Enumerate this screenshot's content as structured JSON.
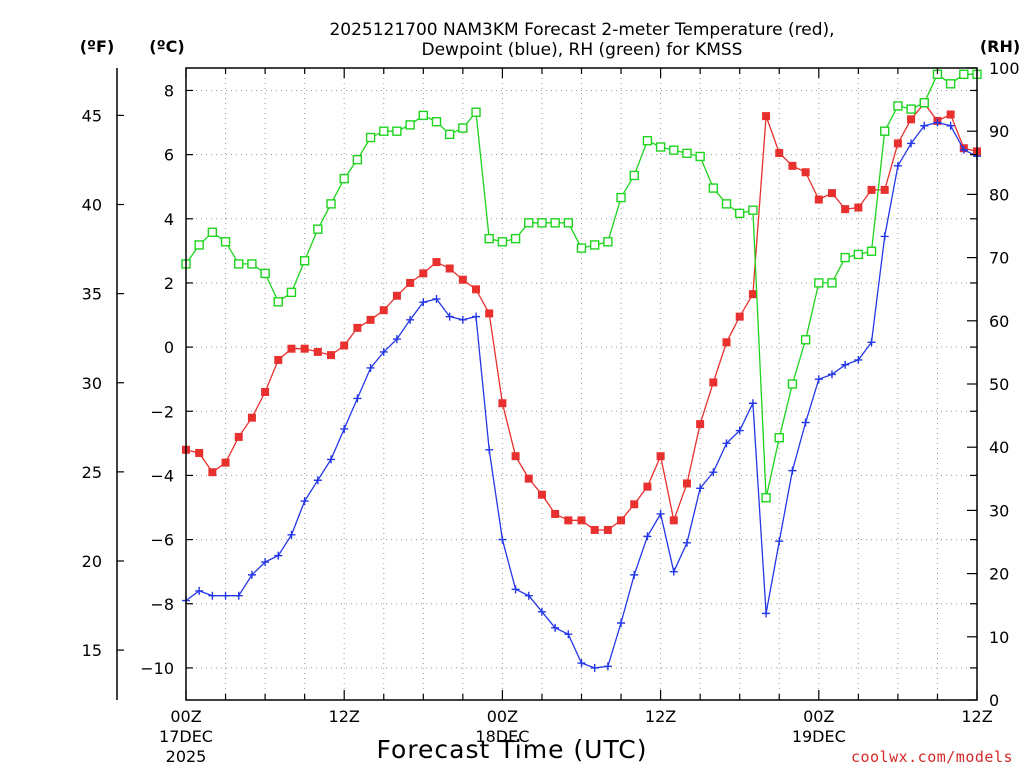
{
  "chart_data": {
    "type": "line",
    "title_lines": [
      "2025121700 NAM3KM Forecast 2-meter Temperature (red),",
      "Dewpoint (blue), RH (green) for KMSS"
    ],
    "xlabel": "Forecast Time (UTC)",
    "credit": "coolwx.com/models",
    "unit_labels": {
      "fahrenheit": "(ºF)",
      "celsius": "(ºC)",
      "rh": "(RH)"
    },
    "x_range_hours": [
      0,
      60
    ],
    "x_ticks": [
      {
        "hour": 0,
        "label": "00Z",
        "sub1": "17DEC",
        "sub2": "2025"
      },
      {
        "hour": 12,
        "label": "12Z",
        "sub1": "",
        "sub2": ""
      },
      {
        "hour": 24,
        "label": "00Z",
        "sub1": "18DEC",
        "sub2": ""
      },
      {
        "hour": 36,
        "label": "12Z",
        "sub1": "",
        "sub2": ""
      },
      {
        "hour": 48,
        "label": "00Z",
        "sub1": "19DEC",
        "sub2": ""
      },
      {
        "hour": 60,
        "label": "12Z",
        "sub1": "",
        "sub2": ""
      }
    ],
    "celsius_axis": {
      "range": [
        -11,
        8.7
      ],
      "ticks": [
        -10,
        -8,
        -6,
        -4,
        -2,
        0,
        2,
        4,
        6,
        8
      ]
    },
    "fahrenheit_axis": {
      "ticks": [
        15,
        20,
        25,
        30,
        35,
        40,
        45
      ]
    },
    "rh_axis": {
      "range": [
        0,
        100
      ],
      "ticks": [
        0,
        10,
        20,
        30,
        40,
        50,
        60,
        70,
        80,
        90,
        100
      ]
    },
    "hours": [
      0,
      1,
      2,
      3,
      4,
      5,
      6,
      7,
      8,
      9,
      10,
      11,
      12,
      13,
      14,
      15,
      16,
      17,
      18,
      19,
      20,
      21,
      22,
      23,
      24,
      25,
      26,
      27,
      28,
      29,
      30,
      31,
      32,
      33,
      34,
      35,
      36,
      37,
      38,
      39,
      40,
      41,
      42,
      43,
      44,
      45,
      46,
      47,
      48,
      49,
      50,
      51,
      52,
      53,
      54,
      55,
      56,
      57,
      58,
      59,
      60
    ],
    "series": [
      {
        "name": "Temperature (°C)",
        "axis": "celsius",
        "color": "#e8302e",
        "marker": "filled-square",
        "values": [
          -3.2,
          -3.3,
          -3.9,
          -3.6,
          -2.8,
          -2.2,
          -1.4,
          -0.4,
          -0.05,
          -0.05,
          -0.15,
          -0.25,
          0.05,
          0.6,
          0.85,
          1.15,
          1.6,
          2.0,
          2.3,
          2.65,
          2.45,
          2.1,
          1.8,
          1.05,
          -1.75,
          -3.4,
          -4.1,
          -4.6,
          -5.2,
          -5.4,
          -5.4,
          -5.7,
          -5.7,
          -5.4,
          -4.9,
          -4.35,
          -3.4,
          -5.4,
          -4.25,
          -2.4,
          -1.1,
          0.15,
          0.95,
          1.65,
          7.2,
          6.05,
          5.65,
          5.45,
          4.6,
          4.8,
          4.3,
          4.35,
          4.9,
          4.9,
          6.35,
          7.1,
          7.6,
          7.05,
          7.25,
          6.2,
          6.1
        ]
      },
      {
        "name": "Dewpoint (°C)",
        "axis": "celsius",
        "color": "#2437e8",
        "marker": "plus",
        "values": [
          -7.9,
          -7.6,
          -7.75,
          -7.75,
          -7.75,
          -7.1,
          -6.7,
          -6.5,
          -5.85,
          -4.8,
          -4.15,
          -3.5,
          -2.55,
          -1.6,
          -0.65,
          -0.15,
          0.25,
          0.85,
          1.4,
          1.5,
          0.95,
          0.85,
          0.95,
          -3.2,
          -6.0,
          -7.55,
          -7.75,
          -8.25,
          -8.75,
          -8.95,
          -9.85,
          -10.0,
          -9.95,
          -8.6,
          -7.1,
          -5.9,
          -5.2,
          -7.0,
          -6.1,
          -4.4,
          -3.9,
          -3.0,
          -2.6,
          -1.75,
          -8.3,
          -6.05,
          -3.85,
          -2.35,
          -1.0,
          -0.85,
          -0.55,
          -0.4,
          0.15,
          3.45,
          5.65,
          6.35,
          6.9,
          7.0,
          6.9,
          6.15,
          5.95
        ]
      },
      {
        "name": "RH (%)",
        "axis": "rh",
        "color": "#1ed41e",
        "marker": "open-square",
        "values": [
          69,
          72,
          74,
          72.5,
          69,
          69,
          67.5,
          63,
          64.5,
          69.5,
          74.5,
          78.5,
          82.5,
          85.5,
          89,
          90,
          90,
          91,
          92.5,
          91.5,
          89.5,
          90.5,
          93,
          73,
          72.5,
          73,
          75.5,
          75.5,
          75.5,
          75.5,
          71.5,
          72,
          72.5,
          79.5,
          83,
          88.5,
          87.5,
          87,
          86.5,
          86,
          81,
          78.5,
          77,
          77.5,
          32,
          41.5,
          50,
          57,
          66,
          66,
          70,
          70.5,
          71,
          90,
          94,
          93.5,
          94.5,
          99,
          97.5,
          99,
          99
        ]
      }
    ]
  }
}
